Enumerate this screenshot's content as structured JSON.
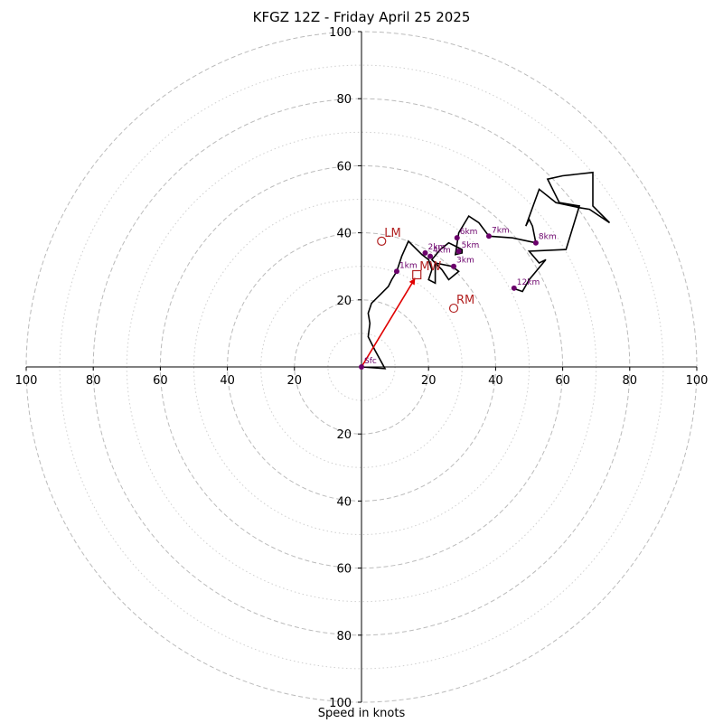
{
  "chart_data": {
    "type": "scatter",
    "title": "KFGZ 12Z - Friday April 25 2025",
    "xlabel": "Speed in knots",
    "ylabel": "",
    "xlim": [
      -100,
      100
    ],
    "ylim": [
      -100,
      100
    ],
    "rings_major": [
      20,
      40,
      60,
      80,
      100
    ],
    "rings_minor": [
      10,
      30,
      50,
      70,
      90
    ],
    "x_tick_labels": [
      "100",
      "80",
      "60",
      "40",
      "20",
      "20",
      "40",
      "60",
      "80",
      "100"
    ],
    "y_tick_labels": [
      "100",
      "80",
      "60",
      "40",
      "20",
      "20",
      "40",
      "60",
      "80",
      "100"
    ],
    "grid": true,
    "colors": {
      "trace": "#000000",
      "height_markers": "#6b006b",
      "storm_motion": "#b22222",
      "mean_wind_vector": "#e00000",
      "grid": "#bbbbbb"
    },
    "hodograph_trace": [
      [
        0,
        0
      ],
      [
        7,
        -0.5
      ],
      [
        4,
        5
      ],
      [
        2,
        9
      ],
      [
        2.5,
        13
      ],
      [
        2,
        16
      ],
      [
        3,
        19
      ],
      [
        6,
        22
      ],
      [
        8,
        24
      ],
      [
        9,
        26
      ],
      [
        10.5,
        28.5
      ],
      [
        12,
        33
      ],
      [
        14,
        37.5
      ],
      [
        18,
        33.5
      ],
      [
        20,
        32
      ],
      [
        21,
        29
      ],
      [
        20,
        26
      ],
      [
        22,
        25
      ],
      [
        22,
        31
      ],
      [
        27,
        30
      ],
      [
        29,
        28.5
      ],
      [
        26,
        26
      ],
      [
        24,
        29
      ],
      [
        23,
        30
      ],
      [
        21,
        32
      ],
      [
        23.5,
        35
      ],
      [
        26,
        37
      ],
      [
        30,
        35
      ],
      [
        30,
        34
      ],
      [
        28,
        33.5
      ],
      [
        29,
        40
      ],
      [
        32,
        45
      ],
      [
        35,
        43
      ],
      [
        38,
        39
      ],
      [
        45,
        38.5
      ],
      [
        52,
        37
      ],
      [
        51,
        42
      ],
      [
        50,
        44
      ],
      [
        49,
        42
      ],
      [
        53,
        53
      ],
      [
        58,
        49
      ],
      [
        65,
        47.5
      ],
      [
        68,
        47
      ],
      [
        74,
        43
      ],
      [
        69,
        48
      ],
      [
        69,
        58
      ],
      [
        60,
        57
      ],
      [
        55.5,
        56
      ],
      [
        59,
        49
      ],
      [
        65,
        48
      ],
      [
        61,
        35
      ],
      [
        50,
        34.5
      ],
      [
        53,
        31
      ],
      [
        55,
        32
      ],
      [
        50,
        26
      ],
      [
        48,
        22.5
      ],
      [
        45,
        23.5
      ]
    ],
    "height_markers": [
      {
        "label": "Sfc",
        "x": 0,
        "y": 0
      },
      {
        "label": "1km",
        "x": 10.5,
        "y": 28.5
      },
      {
        "label": "2km",
        "x": 19,
        "y": 34
      },
      {
        "label": "3km",
        "x": 27.5,
        "y": 30
      },
      {
        "label": "4km",
        "x": 20.5,
        "y": 33
      },
      {
        "label": "5km",
        "x": 29,
        "y": 34.5
      },
      {
        "label": "6km",
        "x": 28.5,
        "y": 38.5
      },
      {
        "label": "7km",
        "x": 38,
        "y": 39
      },
      {
        "label": "8km",
        "x": 52,
        "y": 37
      },
      {
        "label": "12km",
        "x": 45.5,
        "y": 23.5
      }
    ],
    "storm_motion": [
      {
        "label": "LM",
        "x": 6,
        "y": 37.5,
        "marker": "circle"
      },
      {
        "label": "RM",
        "x": 27.5,
        "y": 17.5,
        "marker": "circle"
      },
      {
        "label": "MW",
        "x": 16.5,
        "y": 27.5,
        "marker": "square"
      }
    ],
    "mean_wind_vector": {
      "from": [
        0,
        0
      ],
      "to": [
        16,
        26.5
      ]
    }
  }
}
